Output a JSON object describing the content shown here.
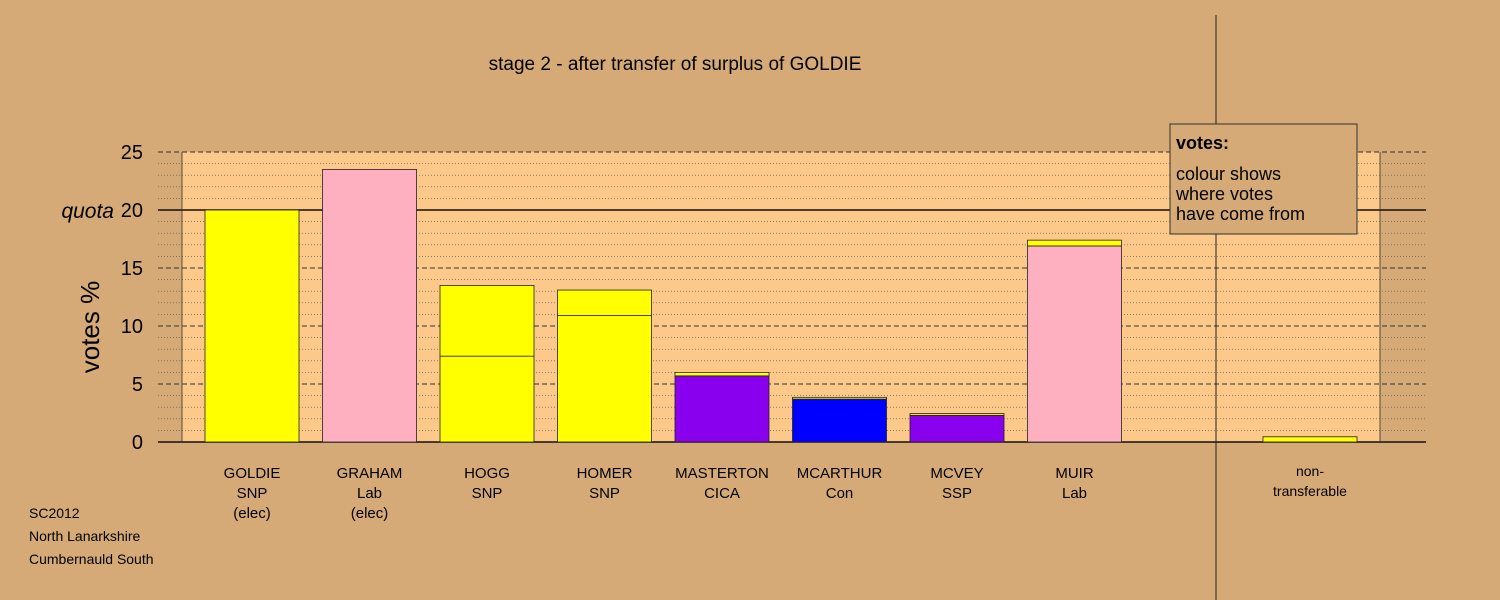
{
  "title": "stage 2 - after transfer of surplus of GOLDIE",
  "ylabel": "votes %",
  "quota_label": "quota",
  "footer": [
    "SC2012",
    "North Lanarkshire",
    "Cumbernauld South"
  ],
  "legend": {
    "title": "votes:",
    "lines": [
      "colour shows",
      "where votes",
      "have come from"
    ]
  },
  "colors": {
    "background": "#d6aa76",
    "plot_area": "#fdc98a",
    "SNP": "#ffff00",
    "Lab": "#ffb0c0",
    "CICA": "#8800ee",
    "Con": "#0000ff",
    "SSP": "#8800ee"
  },
  "chart_data": {
    "type": "bar",
    "stacked": true,
    "title": "stage 2 - after transfer of surplus of GOLDIE",
    "ylabel": "votes %",
    "ylim": [
      0,
      25
    ],
    "yticks": [
      0,
      5,
      10,
      15,
      20,
      25
    ],
    "quota": 20,
    "grid": true,
    "categories": [
      [
        "GOLDIE",
        "SNP",
        "(elec)"
      ],
      [
        "GRAHAM",
        "Lab",
        "(elec)"
      ],
      [
        "HOGG",
        "SNP"
      ],
      [
        "HOMER",
        "SNP"
      ],
      [
        "MASTERTON",
        "CICA"
      ],
      [
        "MCARTHUR",
        "Con"
      ],
      [
        "MCVEY",
        "SSP"
      ],
      [
        "MUIR",
        "Lab"
      ]
    ],
    "bars": [
      [
        {
          "value": 20.0,
          "color": "#ffff00"
        }
      ],
      [
        {
          "value": 23.5,
          "color": "#ffb0c0"
        }
      ],
      [
        {
          "value": 7.4,
          "color": "#ffff00"
        },
        {
          "value": 6.1,
          "color": "#ffff00"
        }
      ],
      [
        {
          "value": 10.9,
          "color": "#ffff00"
        },
        {
          "value": 2.2,
          "color": "#ffff00"
        }
      ],
      [
        {
          "value": 5.7,
          "color": "#8800ee"
        },
        {
          "value": 0.3,
          "color": "#ffff00"
        }
      ],
      [
        {
          "value": 3.7,
          "color": "#0000ff"
        },
        {
          "value": 0.15,
          "color": "#ffff00"
        }
      ],
      [
        {
          "value": 2.3,
          "color": "#8800ee"
        },
        {
          "value": 0.15,
          "color": "#ffff00"
        }
      ],
      [
        {
          "value": 16.9,
          "color": "#ffb0c0"
        },
        {
          "value": 0.5,
          "color": "#ffff00"
        }
      ]
    ],
    "non_transferable": {
      "label": [
        "non-",
        "transferable"
      ],
      "value": 0.45,
      "color": "#ffff00"
    }
  }
}
